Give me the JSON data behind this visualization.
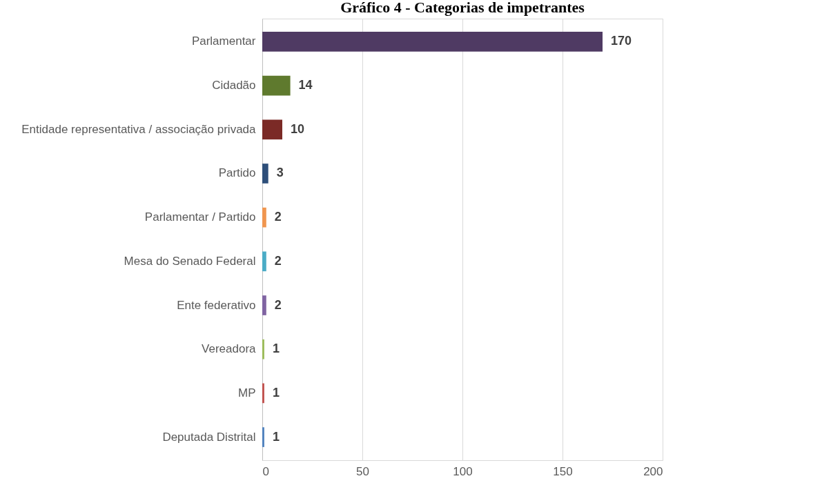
{
  "chart_data": {
    "type": "bar",
    "orientation": "horizontal",
    "title": "Gráfico 4 - Categorias de impetrantes",
    "categories": [
      "Parlamentar",
      "Cidadão",
      "Entidade representativa / associação privada",
      "Partido",
      "Parlamentar / Partido",
      "Mesa do Senado Federal",
      "Ente federativo",
      "Vereadora",
      "MP",
      "Deputada Distrital"
    ],
    "values": [
      170,
      14,
      10,
      3,
      2,
      2,
      2,
      1,
      1,
      1
    ],
    "colors": [
      "#4f3a63",
      "#5f7a2e",
      "#7b2a26",
      "#2e4f7a",
      "#f0964f",
      "#4bacc6",
      "#8064a2",
      "#9bbb59",
      "#c0504d",
      "#4f81bd"
    ],
    "xlim": [
      0,
      200
    ],
    "xticks": [
      0,
      50,
      100,
      150,
      200
    ],
    "grid": "x",
    "data_labels": true
  }
}
